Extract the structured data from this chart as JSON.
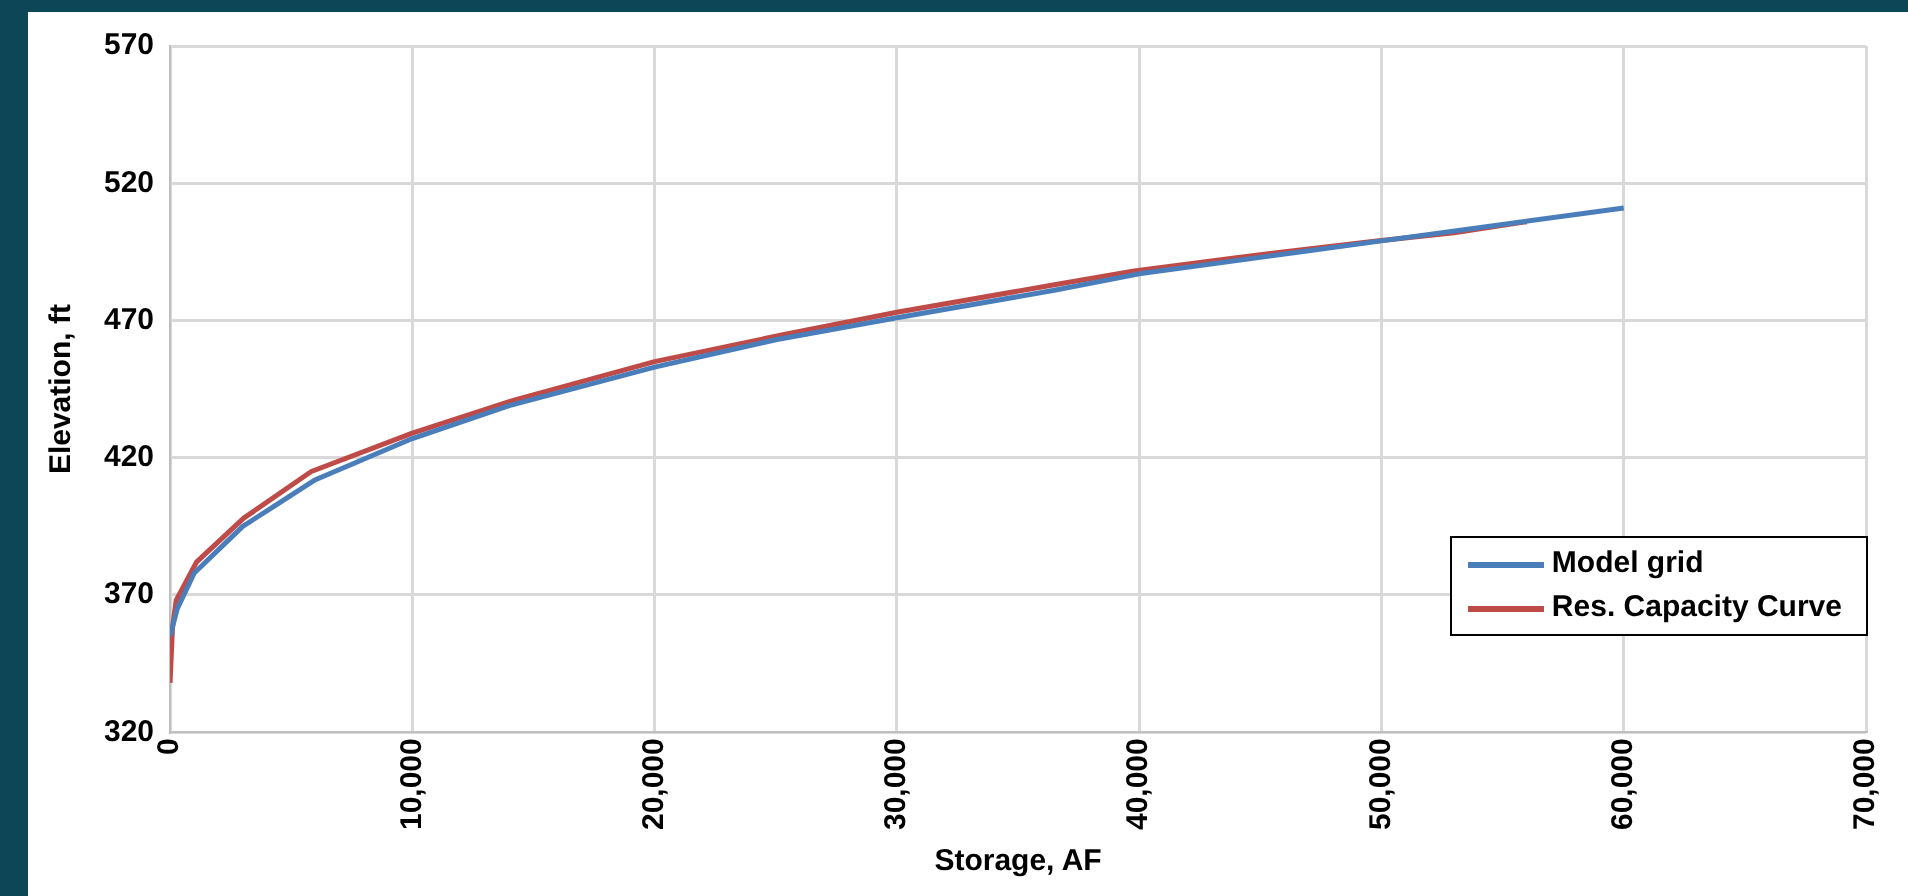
{
  "chart_data": {
    "type": "line",
    "xlabel": "Storage, AF",
    "ylabel": "Elevation, ft",
    "xlim": [
      0,
      70000
    ],
    "xticks": [
      0,
      {
        "value": 10000,
        "label": "10,000"
      },
      {
        "value": 20000,
        "label": "20,000"
      },
      {
        "value": 30000,
        "label": "30,000"
      },
      {
        "value": 40000,
        "label": "40,000"
      },
      {
        "value": 50000,
        "label": "50,000"
      },
      {
        "value": 60000,
        "label": "60,000"
      },
      {
        "value": 70000,
        "label": "70,000"
      }
    ],
    "ylim": [
      320,
      570
    ],
    "yticks": [
      320,
      370,
      420,
      470,
      520,
      570
    ],
    "grid": true,
    "legend": "bottom right",
    "marker": "none",
    "line_style": "solid",
    "series": [
      {
        "name": "Model grid",
        "color": "#4a7ebb",
        "x": [
          0,
          300,
          1000,
          3000,
          6000,
          10000,
          14000,
          20000,
          25000,
          30000,
          36500,
          40000,
          45000,
          50000,
          55000,
          60000
        ],
        "values": [
          355,
          365,
          378,
          395,
          412,
          427,
          439,
          453,
          463,
          471,
          481,
          487,
          493,
          499,
          505,
          511
        ]
      },
      {
        "name": "Res. Capacity Curve",
        "color": "#be4b48",
        "x": [
          0,
          100,
          250,
          1090,
          3040,
          5830,
          10000,
          14200,
          20000,
          25400,
          30000,
          36500,
          39800,
          45000,
          49800,
          53000,
          56000
        ],
        "values": [
          338,
          358,
          368,
          382,
          398,
          415,
          429,
          441,
          455,
          465,
          473,
          483,
          488,
          494,
          499,
          502,
          506
        ]
      }
    ]
  }
}
